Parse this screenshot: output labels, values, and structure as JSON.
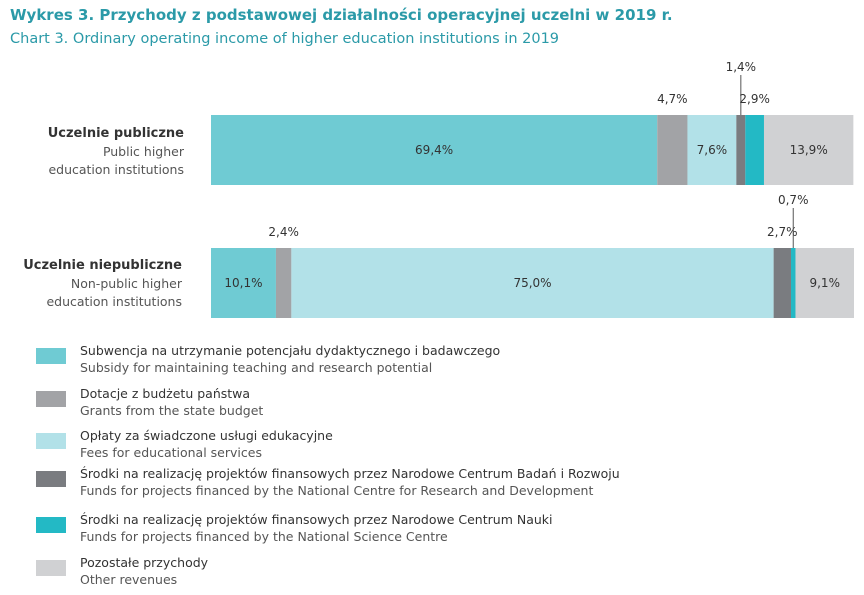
{
  "title_pl": "Wykres 3. Przychody z podstawowej działalności operacyjnej uczelni w 2019 r.",
  "title_en": "Chart 3. Ordinary operating income of higher education institutions in 2019",
  "colors": {
    "subsidy": "#6fcbd3",
    "state_budget": "#a2a3a6",
    "fees": "#b2e1e8",
    "ncbr": "#7a7c80",
    "ncn": "#23b9c5",
    "other": "#d0d1d3"
  },
  "chart_data": {
    "type": "bar",
    "orientation": "horizontal",
    "stacked": true,
    "percent_stacked": true,
    "categories": [
      {
        "pl": "Uczelnie publiczne",
        "en_line1": "Public higher",
        "en_line2": "education institutions"
      },
      {
        "pl": "Uczelnie niepubliczne",
        "en_line1": "Non-public higher",
        "en_line2": "education institutions"
      }
    ],
    "series": [
      {
        "key": "subsidy",
        "values": [
          69.4,
          10.1
        ],
        "labels": [
          "69,4%",
          "10,1%"
        ]
      },
      {
        "key": "state_budget",
        "values": [
          4.7,
          2.4
        ],
        "labels": [
          "4,7%",
          "2,4%"
        ]
      },
      {
        "key": "fees",
        "values": [
          7.6,
          75.0
        ],
        "labels": [
          "7,6%",
          "75,0%"
        ]
      },
      {
        "key": "ncbr",
        "values": [
          1.4,
          2.7
        ],
        "labels": [
          "1,4%",
          "2,7%"
        ]
      },
      {
        "key": "ncn",
        "values": [
          2.9,
          0.7
        ],
        "labels": [
          "2,9%",
          "0,7%"
        ]
      },
      {
        "key": "other",
        "values": [
          13.9,
          9.1
        ],
        "labels": [
          "13,9%",
          "9,1%"
        ]
      }
    ],
    "xlim": [
      0,
      100
    ],
    "legend_position": "bottom",
    "grid": false
  },
  "legend": [
    {
      "key": "subsidy",
      "pl": "Subwencja na utrzymanie potencjału dydaktycznego i badawczego",
      "en": "Subsidy for maintaining teaching and research potential"
    },
    {
      "key": "state_budget",
      "pl": "Dotacje z budżetu państwa",
      "en": "Grants from the state budget"
    },
    {
      "key": "fees",
      "pl": "Opłaty za świadczone usługi edukacyjne",
      "en": "Fees for educational services"
    },
    {
      "key": "ncbr",
      "pl": "Środki na realizację projektów finansowych przez Narodowe Centrum Badań i Rozwoju",
      "en": "Funds for projects financed by the National Centre for Research and Development"
    },
    {
      "key": "ncn",
      "pl": "Środki na realizację projektów finansowych przez Narodowe Centrum Nauki",
      "en": "Funds for projects financed by the National Science Centre"
    },
    {
      "key": "other",
      "pl": "Pozostałe przychody",
      "en": "Other revenues"
    }
  ]
}
